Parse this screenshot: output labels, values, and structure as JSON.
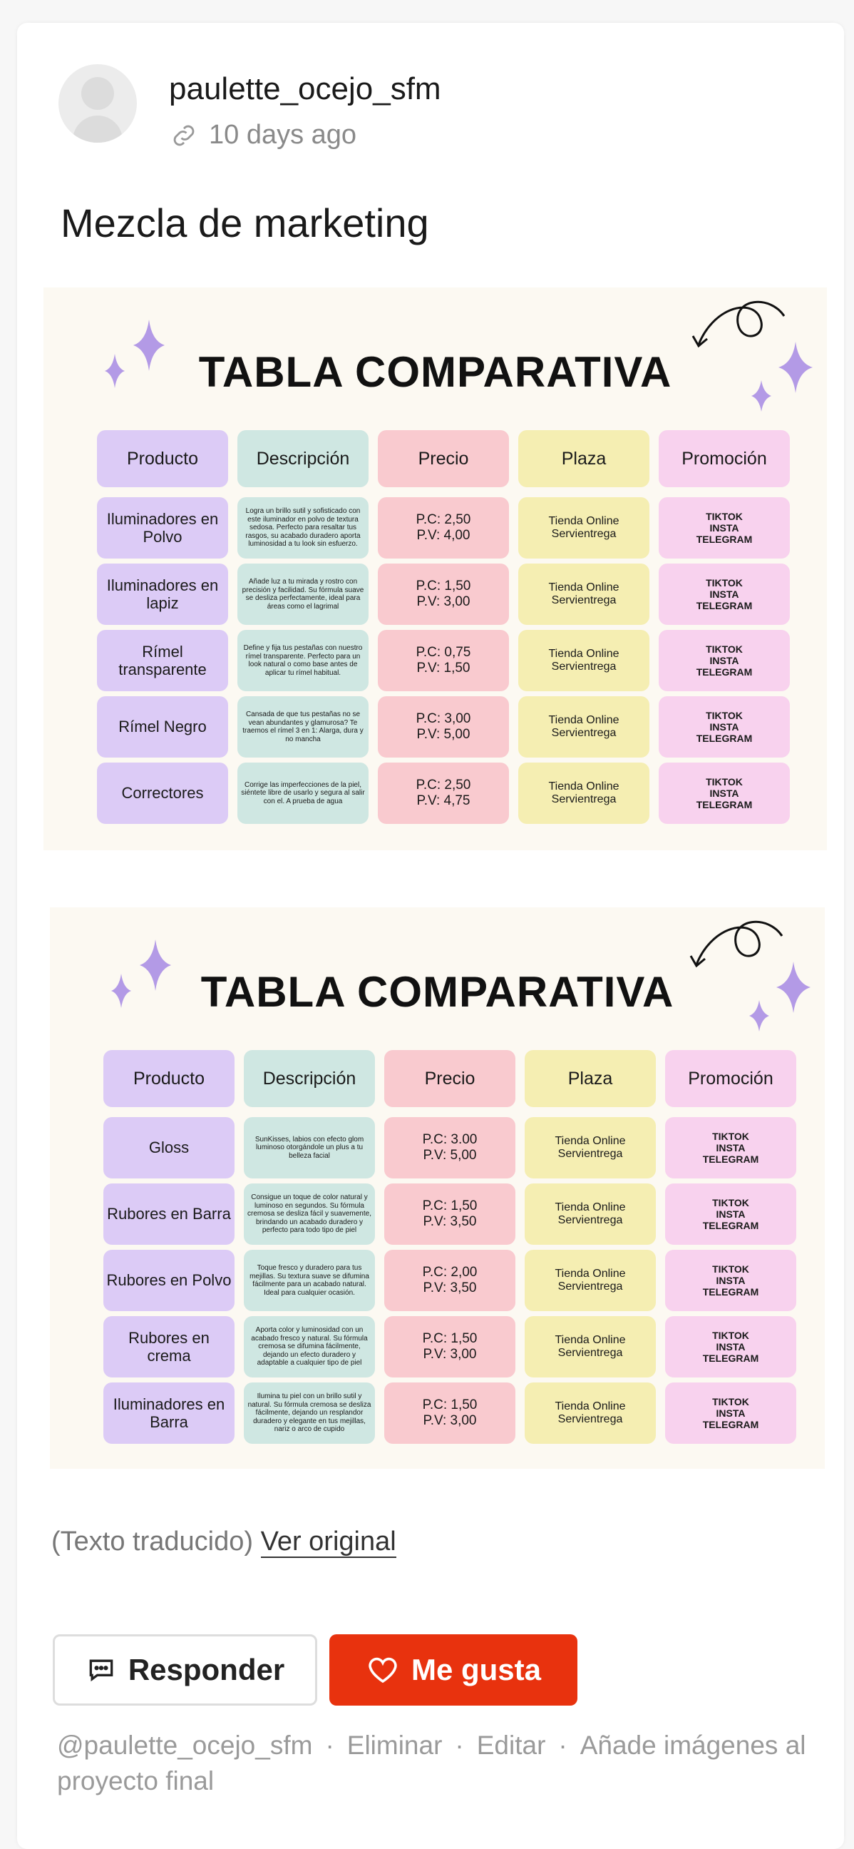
{
  "post": {
    "username": "paulette_ocejo_sfm",
    "time": "10 days ago",
    "title": "Mezcla de marketing"
  },
  "tables": [
    {
      "title": "TABLA COMPARATIVA",
      "headers": [
        "Producto",
        "Descripción",
        "Precio",
        "Plaza",
        "Promoción"
      ],
      "rows": [
        [
          "Iluminadores en Polvo",
          "Logra un brillo sutil y sofisticado con este iluminador en polvo de textura sedosa. Perfecto para resaltar tus rasgos, su acabado duradero aporta luminosidad a tu look sin esfuerzo.",
          "P.C: 2,50\nP.V: 4,00",
          "Tienda Online\nServientrega",
          "TIKTOK\nINSTA\nTELEGRAM"
        ],
        [
          "Iluminadores en lapiz",
          "Añade luz a tu mirada y rostro con precisión y facilidad. Su fórmula suave se desliza perfectamente, ideal para áreas como el lagrimal",
          "P.C: 1,50\nP.V: 3,00",
          "Tienda Online\nServientrega",
          "TIKTOK\nINSTA\nTELEGRAM"
        ],
        [
          "Rímel transparente",
          "Define y fija tus pestañas con nuestro rímel transparente. Perfecto para un look natural o como base antes de aplicar tu rímel habitual.",
          "P.C: 0,75\nP.V: 1,50",
          "Tienda Online\nServientrega",
          "TIKTOK\nINSTA\nTELEGRAM"
        ],
        [
          "Rímel Negro",
          "Cansada de que tus pestañas no se vean abundantes y glamurosa? Te traemos el rímel 3 en 1: Alarga, dura y no mancha",
          "P.C: 3,00\nP.V: 5,00",
          "Tienda Online\nServientrega",
          "TIKTOK\nINSTA\nTELEGRAM"
        ],
        [
          "Correctores",
          "Corrige las imperfecciones de la piel, siéntete libre de usarlo y segura al salir con el. A prueba de agua",
          "P.C: 2,50\nP.V: 4,75",
          "Tienda Online\nServientrega",
          "TIKTOK\nINSTA\nTELEGRAM"
        ]
      ]
    },
    {
      "title": "TABLA COMPARATIVA",
      "headers": [
        "Producto",
        "Descripción",
        "Precio",
        "Plaza",
        "Promoción"
      ],
      "rows": [
        [
          "Gloss",
          "SunKisses, labios con efecto glom luminoso otorgándole un plus a tu belleza facial",
          "P.C: 3.00\nP.V: 5,00",
          "Tienda Online\nServientrega",
          "TIKTOK\nINSTA\nTELEGRAM"
        ],
        [
          "Rubores en Barra",
          "Consigue un toque de color natural y luminoso en segundos. Su fórmula cremosa se desliza fácil y suavemente, brindando un acabado duradero y perfecto para todo tipo de piel",
          "P.C: 1,50\nP.V: 3,50",
          "Tienda Online\nServientrega",
          "TIKTOK\nINSTA\nTELEGRAM"
        ],
        [
          "Rubores en Polvo",
          "Toque fresco y duradero para tus mejillas. Su textura suave se difumina fácilmente para un acabado natural. Ideal para cualquier ocasión.",
          "P.C: 2,00\nP.V: 3,50",
          "Tienda Online\nServientrega",
          "TIKTOK\nINSTA\nTELEGRAM"
        ],
        [
          "Rubores en crema",
          "Aporta color y luminosidad con un acabado fresco y natural. Su fórmula cremosa se difumina fácilmente, dejando un efecto duradero y adaptable a cualquier tipo de piel",
          "P.C: 1,50\nP.V: 3,00",
          "Tienda Online\nServientrega",
          "TIKTOK\nINSTA\nTELEGRAM"
        ],
        [
          "Iluminadores en Barra",
          "Ilumina tu piel con un brillo sutil y natural. Su fórmula cremosa se desliza fácilmente, dejando un resplandor duradero y elegante en tus mejillas, nariz o arco de cupido",
          "P.C: 1,50\nP.V: 3,00",
          "Tienda Online\nServientrega",
          "TIKTOK\nINSTA\nTELEGRAM"
        ]
      ]
    }
  ],
  "translation": {
    "label": "(Texto traducido)",
    "link": "Ver original"
  },
  "actions": {
    "reply": "Responder",
    "like": "Me gusta",
    "like_color": "#e8320e"
  },
  "footer": {
    "mention": "@paulette_ocejo_sfm",
    "delete": "Eliminar",
    "edit": "Editar",
    "add_images": "Añade imágenes al proyecto final"
  }
}
